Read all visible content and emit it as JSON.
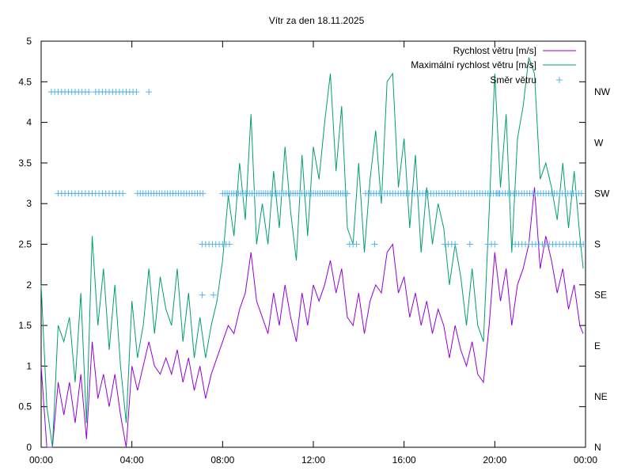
{
  "chart_data": {
    "type": "line",
    "title": "Vítr za den 18.11.2025",
    "x_ticks": [
      "00:00",
      "04:00",
      "08:00",
      "12:00",
      "16:00",
      "20:00",
      "00:00"
    ],
    "x_range_hours": [
      0,
      24
    ],
    "y_ticks": [
      "0",
      "0.5",
      "1",
      "1.5",
      "2",
      "2.5",
      "3",
      "3.5",
      "4",
      "4.5",
      "5"
    ],
    "ylim": [
      0,
      5
    ],
    "y2_ticks": [
      "N",
      "NE",
      "E",
      "SE",
      "S",
      "SW",
      "W",
      "NW"
    ],
    "grid": false,
    "legend_position": "top-right",
    "series": [
      {
        "name": "Rychlost větru [m/s]",
        "style": "line",
        "color": "#9400d3",
        "hours": [
          0,
          0.25,
          0.5,
          0.75,
          1,
          1.25,
          1.5,
          1.75,
          2,
          2.25,
          2.5,
          2.75,
          3,
          3.25,
          3.5,
          3.75,
          4,
          4.25,
          4.5,
          4.75,
          5,
          5.25,
          5.5,
          5.75,
          6,
          6.25,
          6.5,
          6.75,
          7,
          7.25,
          7.5,
          7.75,
          8,
          8.25,
          8.5,
          8.75,
          9,
          9.25,
          9.5,
          9.75,
          10,
          10.25,
          10.5,
          10.75,
          11,
          11.25,
          11.5,
          11.75,
          12,
          12.25,
          12.5,
          12.75,
          13,
          13.25,
          13.5,
          13.75,
          14,
          14.25,
          14.5,
          14.75,
          15,
          15.25,
          15.5,
          15.75,
          16,
          16.25,
          16.5,
          16.75,
          17,
          17.25,
          17.5,
          17.75,
          18,
          18.25,
          18.5,
          18.75,
          19,
          19.25,
          19.5,
          19.75,
          20,
          20.25,
          20.5,
          20.75,
          21,
          21.25,
          21.5,
          21.75,
          22,
          22.25,
          22.5,
          22.75,
          23,
          23.25,
          23.5,
          23.75,
          23.9
        ],
        "values": [
          1.0,
          0.0,
          0.0,
          0.8,
          0.4,
          0.8,
          0.3,
          0.9,
          0.1,
          1.3,
          0.6,
          0.9,
          0.5,
          0.9,
          0.4,
          0.0,
          1.0,
          0.7,
          1.0,
          1.3,
          1.0,
          0.9,
          1.1,
          0.9,
          1.2,
          0.8,
          1.1,
          0.7,
          1.0,
          0.6,
          0.9,
          1.1,
          1.3,
          1.5,
          1.4,
          1.7,
          1.9,
          2.4,
          1.8,
          1.6,
          1.4,
          1.9,
          1.5,
          2.0,
          1.6,
          1.3,
          1.9,
          1.5,
          2.0,
          1.8,
          2.0,
          2.3,
          1.9,
          2.2,
          1.6,
          1.5,
          1.9,
          1.4,
          1.8,
          2.0,
          1.9,
          2.4,
          2.5,
          1.9,
          2.1,
          1.6,
          1.9,
          1.5,
          1.8,
          1.4,
          1.7,
          1.5,
          1.1,
          1.5,
          1.2,
          1.0,
          1.3,
          0.9,
          0.8,
          1.5,
          2.4,
          1.8,
          2.2,
          1.5,
          2.0,
          2.2,
          2.5,
          3.2,
          2.2,
          2.6,
          2.3,
          1.9,
          2.2,
          1.7,
          2.0,
          1.5,
          1.4
        ]
      },
      {
        "name": "Maximální rychlost větru [m/s]",
        "style": "line",
        "color": "#009e73",
        "hours": [
          0,
          0.25,
          0.5,
          0.75,
          1,
          1.25,
          1.5,
          1.75,
          2,
          2.25,
          2.5,
          2.75,
          3,
          3.25,
          3.5,
          3.75,
          4,
          4.25,
          4.5,
          4.75,
          5,
          5.25,
          5.5,
          5.75,
          6,
          6.25,
          6.5,
          6.75,
          7,
          7.25,
          7.5,
          7.75,
          8,
          8.25,
          8.5,
          8.75,
          9,
          9.25,
          9.5,
          9.75,
          10,
          10.25,
          10.5,
          10.75,
          11,
          11.25,
          11.5,
          11.75,
          12,
          12.25,
          12.5,
          12.75,
          13,
          13.25,
          13.5,
          13.75,
          14,
          14.25,
          14.5,
          14.75,
          15,
          15.25,
          15.5,
          15.75,
          16,
          16.25,
          16.5,
          16.75,
          17,
          17.25,
          17.5,
          17.75,
          18,
          18.25,
          18.5,
          18.75,
          19,
          19.25,
          19.5,
          19.75,
          20,
          20.25,
          20.5,
          20.75,
          21,
          21.25,
          21.5,
          21.75,
          22,
          22.25,
          22.5,
          22.75,
          23,
          23.25,
          23.5,
          23.75,
          23.9
        ],
        "values": [
          2.0,
          0.5,
          0.0,
          1.5,
          1.3,
          1.6,
          0.8,
          1.9,
          0.3,
          2.6,
          1.5,
          2.2,
          1.2,
          2.0,
          1.0,
          0.3,
          1.8,
          1.1,
          1.5,
          2.2,
          1.4,
          2.1,
          1.7,
          1.5,
          2.2,
          1.3,
          1.9,
          1.1,
          1.6,
          1.1,
          1.5,
          1.8,
          2.3,
          3.1,
          2.6,
          3.5,
          2.8,
          4.1,
          2.5,
          3.0,
          2.5,
          3.4,
          2.7,
          3.7,
          2.9,
          2.3,
          3.6,
          2.6,
          3.7,
          3.3,
          4.0,
          4.6,
          3.4,
          4.2,
          2.7,
          2.5,
          3.5,
          2.4,
          3.3,
          3.9,
          3.0,
          4.5,
          4.6,
          3.2,
          3.8,
          2.7,
          3.6,
          2.4,
          3.2,
          2.5,
          3.0,
          2.7,
          2.0,
          2.5,
          2.1,
          1.5,
          2.2,
          1.5,
          1.3,
          2.9,
          4.6,
          3.2,
          4.1,
          2.4,
          3.8,
          4.2,
          4.8,
          4.6,
          3.3,
          3.5,
          3.2,
          2.8,
          3.5,
          2.7,
          3.4,
          2.6,
          2.2
        ]
      },
      {
        "name": "Směr větru",
        "style": "points",
        "color": "#56b4e9",
        "segments": [
          {
            "dir": "NW",
            "start": 0.45,
            "end": 4.4,
            "step": 0.15,
            "gaps": [
              [
                2.1,
                2.35
              ],
              [
                3.15,
                3.25
              ],
              [
                4.25,
                4.5
              ]
            ],
            "extra": [
              4.75
            ]
          },
          {
            "dir": "SW",
            "start": 0.75,
            "end": 3.6,
            "step": 0.15
          },
          {
            "dir": "SW",
            "start": 4.25,
            "end": 7.2,
            "step": 0.12
          },
          {
            "dir": "S",
            "start": 7.1,
            "end": 8.4,
            "step": 0.15
          },
          {
            "dir": "SE",
            "start": 7.1,
            "end": 7.6,
            "step": 0.5
          },
          {
            "dir": "SW",
            "start": 8.0,
            "end": 13.5,
            "step": 0.1
          },
          {
            "dir": "S",
            "start": 13.6,
            "end": 14.0,
            "step": 0.15,
            "extra": [
              14.7
            ]
          },
          {
            "dir": "SW",
            "start": 14.3,
            "end": 20.2,
            "step": 0.12
          },
          {
            "dir": "S",
            "start": 17.8,
            "end": 18.3,
            "step": 0.15,
            "extra": [
              18.9
            ]
          },
          {
            "dir": "S",
            "start": 19.7,
            "end": 20.0,
            "step": 0.15
          },
          {
            "dir": "SW",
            "start": 20.1,
            "end": 23.9,
            "step": 0.12
          },
          {
            "dir": "S",
            "start": 20.9,
            "end": 23.9,
            "step": 0.15
          }
        ]
      }
    ]
  }
}
